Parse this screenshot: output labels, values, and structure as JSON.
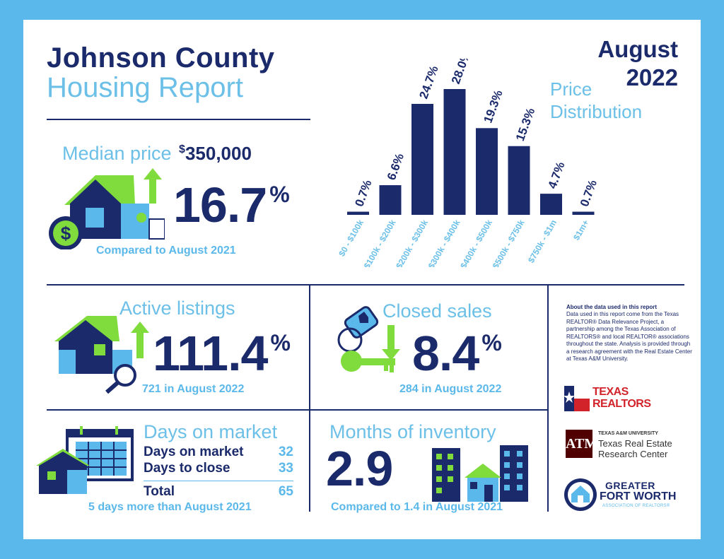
{
  "header": {
    "title_line1": "Johnson County",
    "title_line2": "Housing Report",
    "month": "August",
    "year": "2022"
  },
  "median_price": {
    "label": "Median price",
    "value": "350,000",
    "currency_symbol": "$",
    "change": "16.7",
    "percent_sign": "%",
    "direction": "up",
    "caption": "Compared to August 2021"
  },
  "price_distribution": {
    "title_line1": "Price",
    "title_line2": "Distribution"
  },
  "chart_data": {
    "type": "bar",
    "title": "Price Distribution",
    "categories": [
      "$0 - $100k",
      "$100k - $200k",
      "$200k - $300k",
      "$300k - $400k",
      "$400k - $500k",
      "$500k - $750k",
      "$750k - $1m",
      "$1m+"
    ],
    "values": [
      0.7,
      6.6,
      24.7,
      28.0,
      19.3,
      15.3,
      4.7,
      0.7
    ],
    "data_labels": [
      "0.7%",
      "6.6%",
      "24.7%",
      "28.0%",
      "19.3%",
      "15.3%",
      "4.7%",
      "0.7%"
    ],
    "ylim": [
      0,
      28.0
    ],
    "bar_color": "#1b2a6b",
    "label_color": "#6cc0e8",
    "grid": false
  },
  "active_listings": {
    "label": "Active listings",
    "change": "111.4",
    "percent_sign": "%",
    "direction": "up",
    "caption": "721 in August 2022"
  },
  "closed_sales": {
    "label": "Closed sales",
    "change": "8.4",
    "percent_sign": "%",
    "direction": "down",
    "caption": "284 in August 2022"
  },
  "about": {
    "heading": "About the data used in this report",
    "body": "Data used in this report come from the Texas REALTOR® Data Relevance Project, a partnership among the Texas Association of REALTORS® and local REALTOR® associations throughout the state. Analysis is provided through a research agreement with the Real Estate Center at Texas A&M University."
  },
  "days_on_market": {
    "label": "Days on market",
    "rows": [
      {
        "label": "Days on market",
        "value": "32"
      },
      {
        "label": "Days to close",
        "value": "33"
      }
    ],
    "total_label": "Total",
    "total_value": "65",
    "caption": "5 days more than August 2021"
  },
  "months_inventory": {
    "label": "Months of inventory",
    "value": "2.9",
    "caption": "Compared to 1.4 in August 2021"
  },
  "logos": {
    "texas_realtors_line1": "TEXAS",
    "texas_realtors_line2": "REALTORS",
    "tamu_line1": "TEXAS A&M UNIVERSITY",
    "tamu_line2": "Texas Real Estate",
    "tamu_line3": "Research Center",
    "gfw_line1": "GREATER",
    "gfw_line2": "FORT WORTH",
    "gfw_line3": "ASSOCIATION OF REALTORS®"
  },
  "colors": {
    "navy": "#1b2a6b",
    "light_blue": "#6cc0e8",
    "green": "#7fdc3c",
    "frame": "#5bb8ea",
    "texas_red": "#d2232a",
    "tamu_maroon": "#500000"
  },
  "icons": [
    "house-dollar-icon",
    "arrow-up-icon",
    "house-search-icon",
    "key-tag-icon",
    "arrow-down-icon",
    "calendar-house-icon",
    "city-buildings-icon"
  ]
}
